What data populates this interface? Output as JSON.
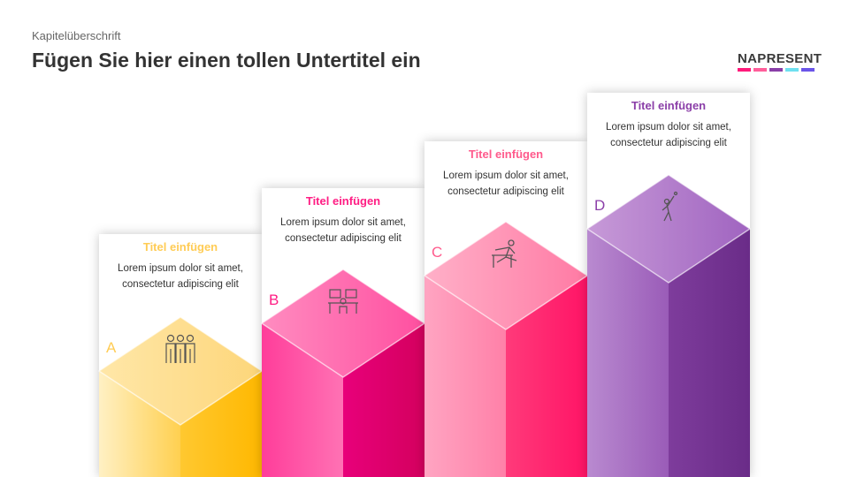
{
  "header": {
    "chapter": "Kapitelüberschrift",
    "subtitle": "Fügen Sie hier einen tollen Untertitel ein"
  },
  "logo": {
    "text": "NAPRESENT",
    "colors": [
      "#ff1a7a",
      "#ff5e9a",
      "#8a3fa8",
      "#6ee0f0",
      "#6a55e8"
    ]
  },
  "steps": [
    {
      "letter": "A",
      "title": "Titel einfügen",
      "text": "Lorem ipsum dolor sit amet, consectetur adipiscing elit",
      "color": "#ffcc55",
      "icon": "team-icon"
    },
    {
      "letter": "B",
      "title": "Titel einfügen",
      "text": "Lorem ipsum dolor sit amet, consectetur adipiscing elit",
      "color": "#ff1e84",
      "icon": "workstation-icon"
    },
    {
      "letter": "C",
      "title": "Titel einfügen",
      "text": "Lorem ipsum dolor sit amet, consectetur adipiscing elit",
      "color": "#ff5a8c",
      "icon": "hurdle-runner-icon"
    },
    {
      "letter": "D",
      "title": "Titel einfügen",
      "text": "Lorem ipsum dolor sit amet, consectetur adipiscing elit",
      "color": "#8b3fa8",
      "icon": "athlete-icon"
    }
  ]
}
